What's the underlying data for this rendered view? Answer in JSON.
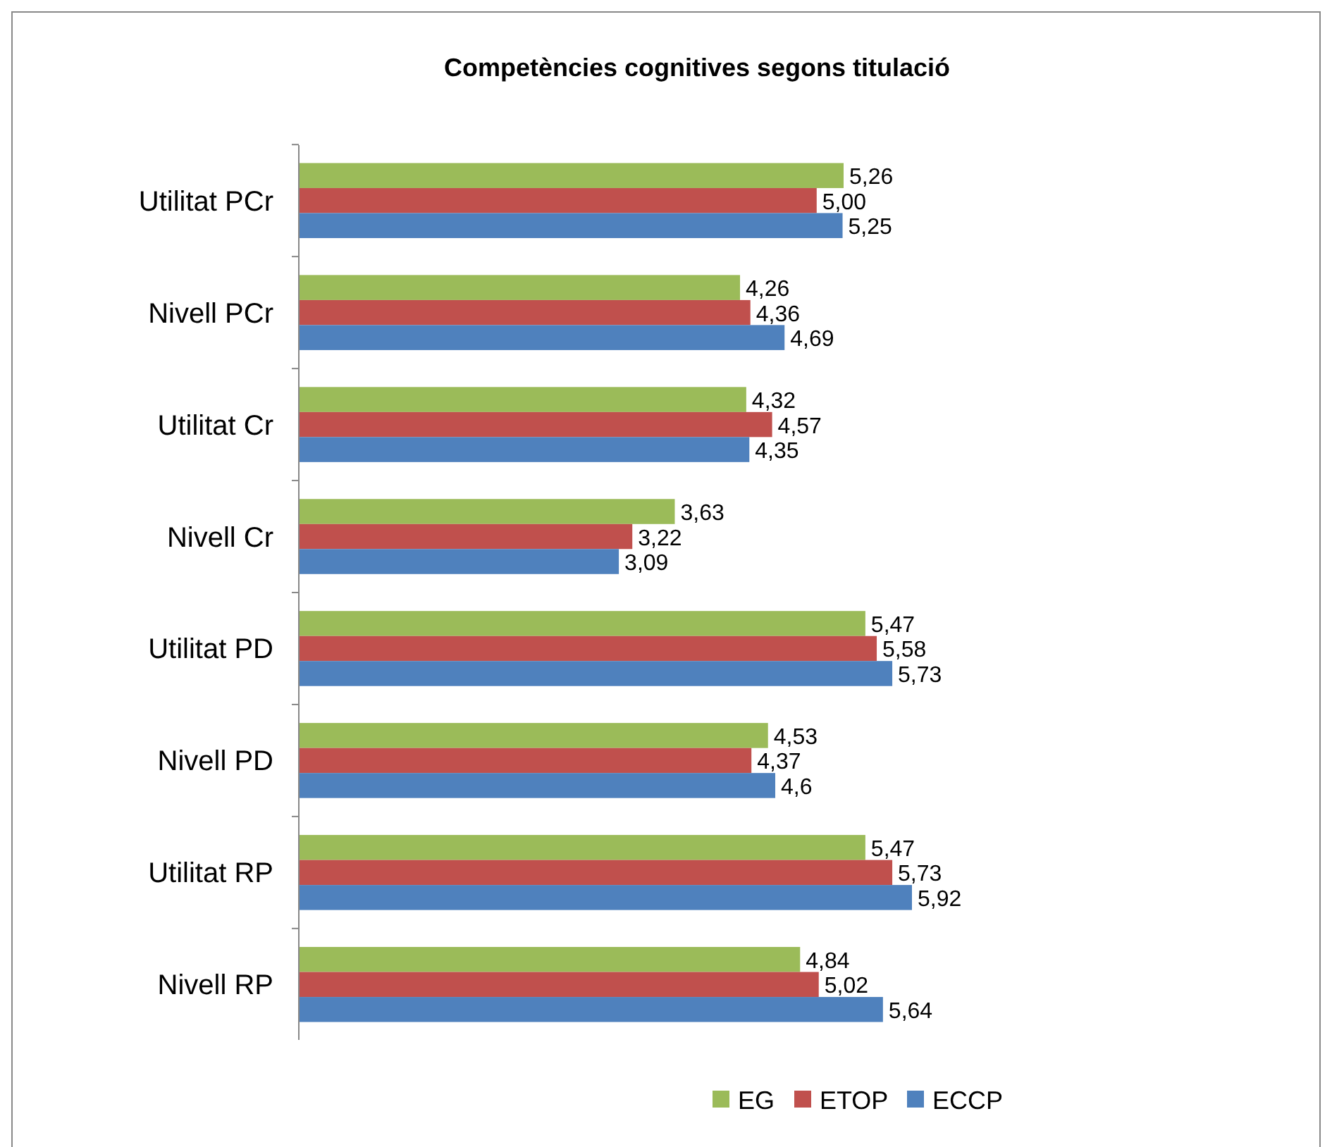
{
  "chart_data": {
    "type": "bar",
    "orientation": "horizontal",
    "title": "Competències cognitives segons titulació",
    "legend": "bottom",
    "categories": [
      "Utilitat PCr",
      "Nivell PCr",
      "Utilitat Cr",
      "Nivell Cr",
      "Utilitat PD",
      "Nivell PD",
      "Utilitat RP",
      "Nivell RP"
    ],
    "series": [
      {
        "name": "EG",
        "color": "#9bbb59",
        "values": [
          5.26,
          4.26,
          4.32,
          3.63,
          5.47,
          4.53,
          5.47,
          4.84
        ],
        "value_labels": [
          "5,26",
          "4,26",
          "4,32",
          "3,63",
          "5,47",
          "4,53",
          "5,47",
          "4,84"
        ]
      },
      {
        "name": "ETOP",
        "color": "#c0504d",
        "values": [
          5.0,
          4.36,
          4.57,
          3.22,
          5.58,
          4.37,
          5.73,
          5.02
        ],
        "value_labels": [
          "5,00",
          "4,36",
          "4,57",
          "3,22",
          "5,58",
          "4,37",
          "5,73",
          "5,02"
        ]
      },
      {
        "name": "ECCP",
        "color": "#4f81bd",
        "values": [
          5.25,
          4.69,
          4.35,
          3.09,
          5.73,
          4.6,
          5.92,
          5.64
        ],
        "value_labels": [
          "5,25",
          "4,69",
          "4,35",
          "3,09",
          "5,73",
          "4,6",
          "5,92",
          "5,64"
        ]
      }
    ]
  }
}
